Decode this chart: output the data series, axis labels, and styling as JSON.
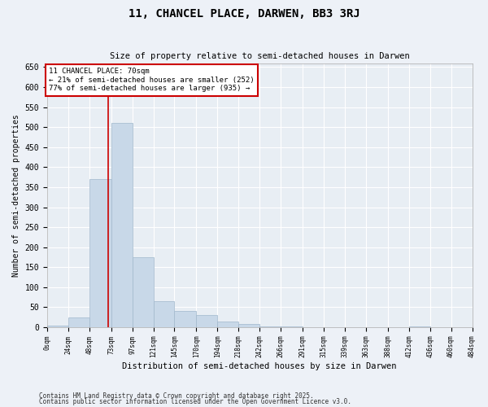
{
  "title": "11, CHANCEL PLACE, DARWEN, BB3 3RJ",
  "subtitle": "Size of property relative to semi-detached houses in Darwen",
  "xlabel": "Distribution of semi-detached houses by size in Darwen",
  "ylabel": "Number of semi-detached properties",
  "bar_color": "#c8d8e8",
  "bar_edge_color": "#a0b8cc",
  "background_color": "#e8eef4",
  "grid_color": "#ffffff",
  "annotation_box_color": "#cc0000",
  "property_line_color": "#cc0000",
  "annotation_title": "11 CHANCEL PLACE: 70sqm",
  "annotation_line1": "← 21% of semi-detached houses are smaller (252)",
  "annotation_line2": "77% of semi-detached houses are larger (935) →",
  "property_sqm": 70,
  "bin_edges": [
    0,
    24,
    48,
    73,
    97,
    121,
    145,
    170,
    194,
    218,
    242,
    266,
    291,
    315,
    339,
    363,
    388,
    412,
    436,
    460,
    484
  ],
  "bin_counts": [
    5,
    25,
    370,
    510,
    175,
    65,
    40,
    30,
    15,
    8,
    2,
    1,
    0,
    0,
    0,
    0,
    0,
    2,
    0,
    0
  ],
  "ylim": [
    0,
    660
  ],
  "yticks": [
    0,
    50,
    100,
    150,
    200,
    250,
    300,
    350,
    400,
    450,
    500,
    550,
    600,
    650
  ],
  "footnote1": "Contains HM Land Registry data © Crown copyright and database right 2025.",
  "footnote2": "Contains public sector information licensed under the Open Government Licence v3.0."
}
